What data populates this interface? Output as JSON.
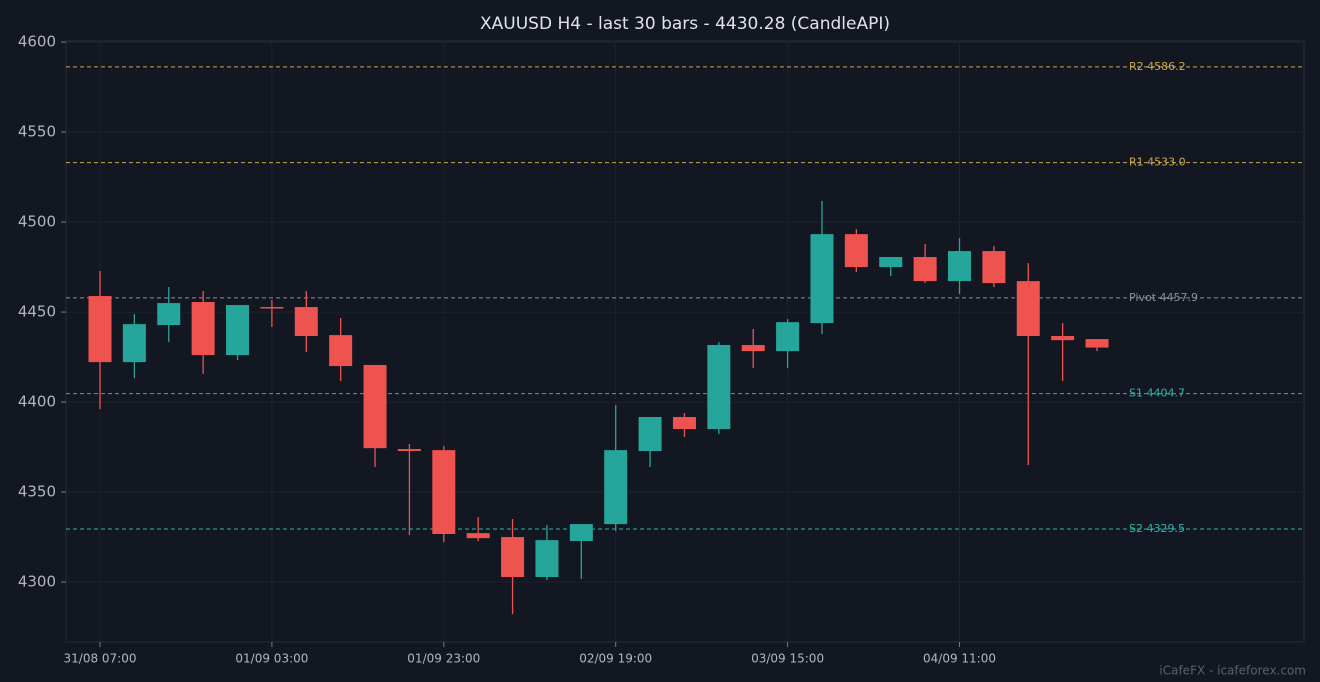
{
  "chart_data": {
    "type": "candlestick",
    "title": "XAUUSD H4 - last 30 bars - 4430.28 (CandleAPI)",
    "categories": [
      "31/08 07:00",
      null,
      null,
      null,
      null,
      "01/09 03:00",
      null,
      null,
      null,
      null,
      "01/09 23:00",
      null,
      null,
      null,
      null,
      "02/09 19:00",
      null,
      null,
      null,
      null,
      "03/09 15:00",
      null,
      null,
      null,
      null,
      "04/09 11:00",
      null,
      null,
      null,
      null
    ],
    "open": [
      4458.9,
      4422.2,
      4442.8,
      4455.6,
      4426.1,
      4452.8,
      4452.8,
      4437.2,
      4420.6,
      4373.9,
      4373.3,
      4327.2,
      4325.0,
      4302.8,
      4322.8,
      4332.2,
      4372.8,
      4391.7,
      4385.0,
      4431.7,
      4428.3,
      4443.9,
      4493.3,
      4475.0,
      4480.6,
      4467.2,
      4483.9,
      4467.2,
      4436.7,
      4435.0
    ],
    "high": [
      4472.8,
      4448.9,
      4463.9,
      4461.7,
      4454.0,
      4456.7,
      4461.7,
      4446.7,
      4420.6,
      4376.7,
      4375.6,
      4336.1,
      4335.0,
      4331.7,
      4332.2,
      4398.3,
      4391.7,
      4393.9,
      4433.3,
      4440.6,
      4446.1,
      4511.7,
      4496.1,
      4480.6,
      4487.8,
      4491.1,
      4486.7,
      4477.2,
      4443.9,
      4435.0
    ],
    "low": [
      4396.1,
      4413.3,
      4433.3,
      4415.6,
      4423.3,
      4441.7,
      4427.8,
      4411.7,
      4363.9,
      4326.1,
      4322.2,
      4322.8,
      4282.2,
      4301.1,
      4301.7,
      4328.3,
      4363.9,
      4380.6,
      4382.2,
      4418.9,
      4418.9,
      4437.8,
      4472.2,
      4470.0,
      4466.1,
      4460.0,
      4463.9,
      4365.0,
      4411.7,
      4428.3
    ],
    "close": [
      4422.2,
      4443.3,
      4455.0,
      4426.1,
      4453.9,
      4452.2,
      4436.7,
      4420.0,
      4374.4,
      4372.8,
      4326.7,
      4324.4,
      4302.8,
      4323.3,
      4332.2,
      4373.3,
      4391.7,
      4385.0,
      4431.7,
      4428.3,
      4444.4,
      4493.3,
      4475.0,
      4480.6,
      4467.2,
      4483.9,
      4466.1,
      4436.7,
      4434.4,
      4430.28
    ],
    "up_color": "#26a69a",
    "down_color": "#ef5350",
    "levels": [
      {
        "value": 4586.2,
        "label": "R2 4586.2",
        "color": "#c9a94b"
      },
      {
        "value": 4533.0,
        "label": "R1 4533.0",
        "color": "#c9a94b"
      },
      {
        "value": 4457.9,
        "label": "Pivot 4457.9",
        "color": "#8a8f98"
      },
      {
        "value": 4404.7,
        "label": "S1 4404.7",
        "color": "#2fb3a5"
      },
      {
        "value": 4329.5,
        "label": "S2 4329.5",
        "color": "#2fb3a5"
      }
    ],
    "ylim": [
      4266.7,
      4600.6
    ],
    "yticks": [
      4300,
      4350,
      4400,
      4450,
      4500,
      4550,
      4600
    ],
    "grid": true,
    "watermark": "iCafeFX - icafeforex.com"
  }
}
